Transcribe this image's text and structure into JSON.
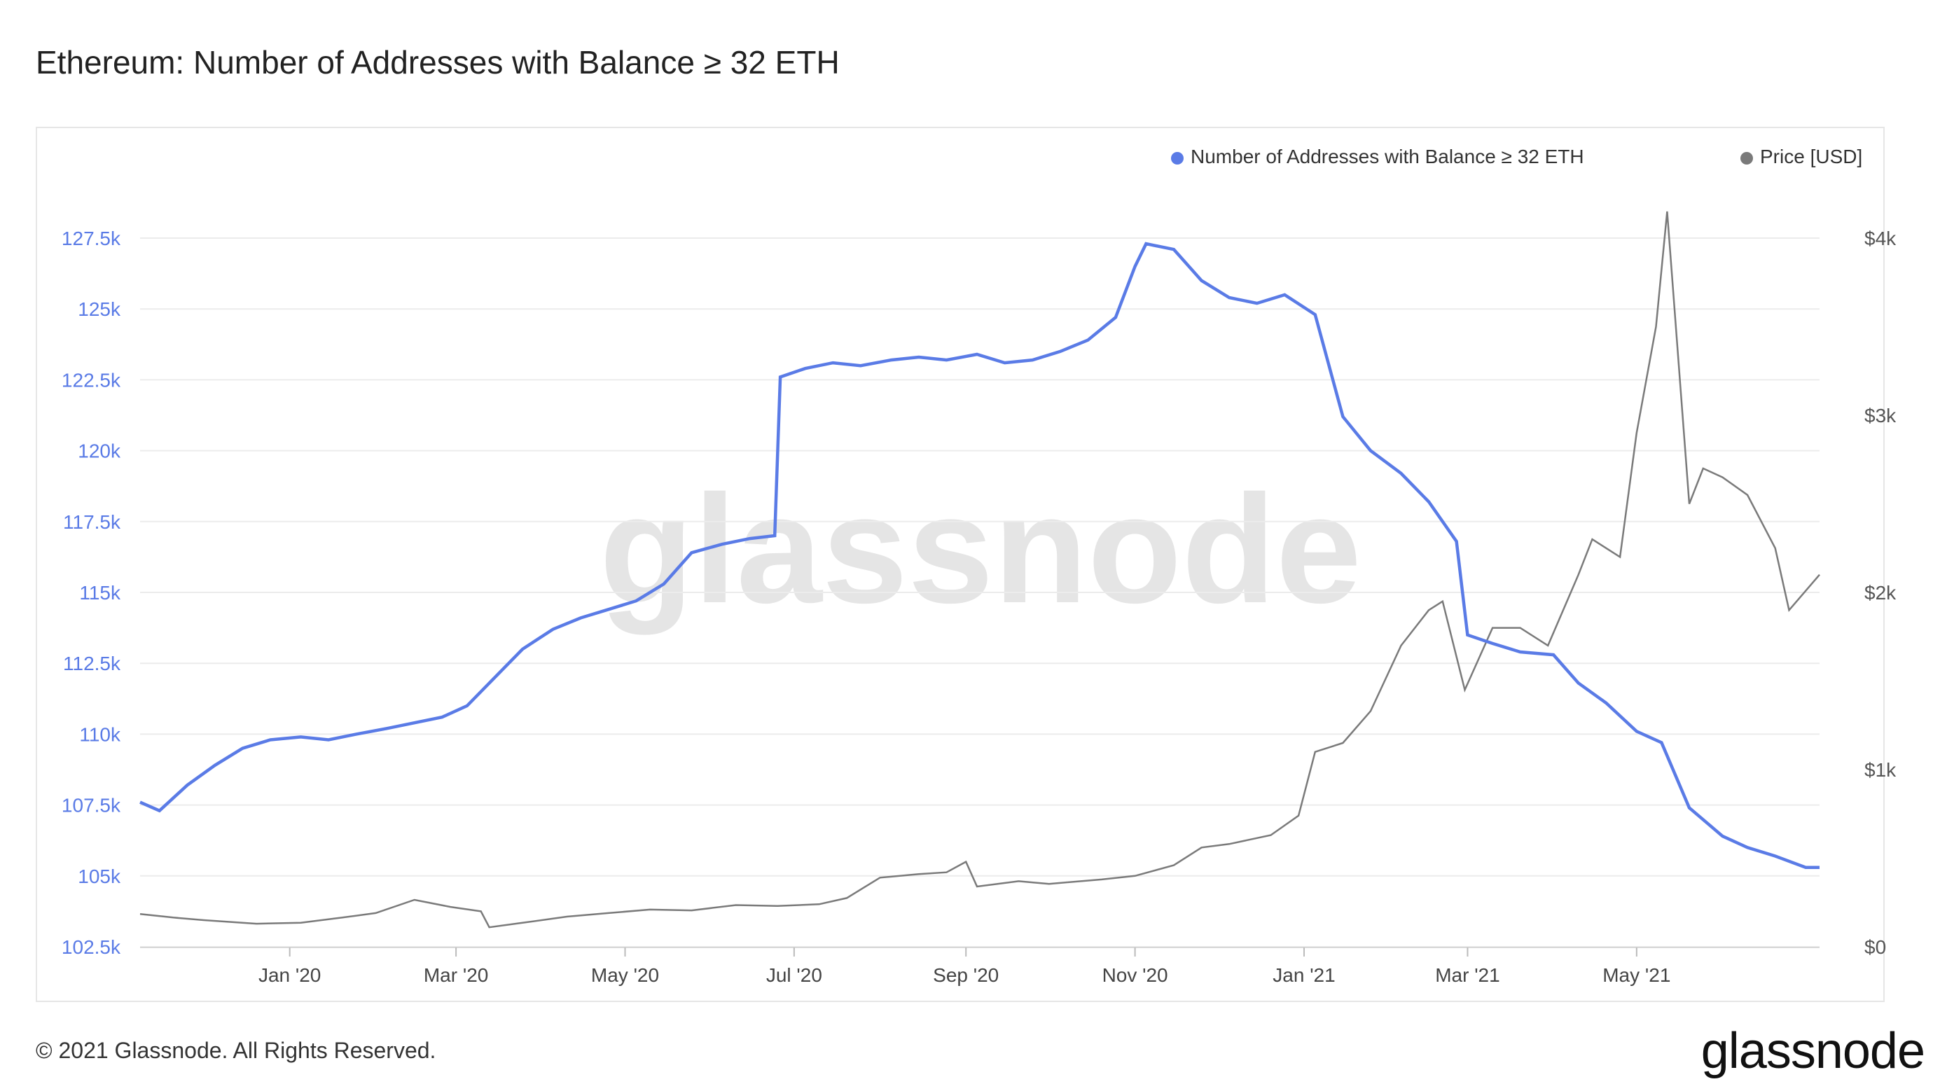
{
  "title": "Ethereum: Number of Addresses with Balance ≥ 32 ETH",
  "footer": "© 2021 Glassnode. All Rights Reserved.",
  "logo": "glassnode",
  "watermark": "glassnode",
  "colors": {
    "addresses": "#5a7be6",
    "price": "#7a7a7a",
    "grid": "#ececec"
  },
  "chart_data": {
    "type": "line",
    "title": "Ethereum: Number of Addresses with Balance ≥ 32 ETH",
    "x_ticks": [
      "Jan '20",
      "Mar '20",
      "May '20",
      "Jul '20",
      "Sep '20",
      "Nov '20",
      "Jan '21",
      "Mar '21",
      "May '21"
    ],
    "x_tick_dates": [
      "2020-01-01",
      "2020-03-01",
      "2020-05-01",
      "2020-07-01",
      "2020-09-01",
      "2020-11-01",
      "2021-01-01",
      "2021-03-01",
      "2021-05-01"
    ],
    "x_range": [
      "2019-11-08",
      "2021-07-06"
    ],
    "y_left": {
      "ticks": [
        "102.5k",
        "105k",
        "107.5k",
        "110k",
        "112.5k",
        "115k",
        "117.5k",
        "120k",
        "122.5k",
        "125k",
        "127.5k"
      ],
      "range": [
        102500,
        127500
      ]
    },
    "y_right": {
      "ticks": [
        "$0",
        "$1k",
        "$2k",
        "$3k",
        "$4k"
      ],
      "range": [
        0,
        4000
      ]
    },
    "legend": {
      "placement": "top-right"
    },
    "grid": true,
    "series": [
      {
        "name": "Number of Addresses with Balance ≥ 32 ETH",
        "axis": "left",
        "x": [
          "2019-11-08",
          "2019-11-15",
          "2019-11-25",
          "2019-12-05",
          "2019-12-15",
          "2019-12-25",
          "2020-01-05",
          "2020-01-15",
          "2020-01-25",
          "2020-02-05",
          "2020-02-15",
          "2020-02-25",
          "2020-03-05",
          "2020-03-15",
          "2020-03-25",
          "2020-04-05",
          "2020-04-15",
          "2020-04-25",
          "2020-05-05",
          "2020-05-15",
          "2020-05-25",
          "2020-06-05",
          "2020-06-15",
          "2020-06-24",
          "2020-06-26",
          "2020-07-05",
          "2020-07-15",
          "2020-07-25",
          "2020-08-05",
          "2020-08-15",
          "2020-08-25",
          "2020-09-05",
          "2020-09-15",
          "2020-09-25",
          "2020-10-05",
          "2020-10-15",
          "2020-10-25",
          "2020-11-01",
          "2020-11-05",
          "2020-11-15",
          "2020-11-25",
          "2020-12-05",
          "2020-12-15",
          "2020-12-25",
          "2021-01-05",
          "2021-01-15",
          "2021-01-25",
          "2021-02-05",
          "2021-02-15",
          "2021-02-25",
          "2021-03-01",
          "2021-03-10",
          "2021-03-20",
          "2021-04-01",
          "2021-04-10",
          "2021-04-20",
          "2021-05-01",
          "2021-05-10",
          "2021-05-20",
          "2021-06-01",
          "2021-06-10",
          "2021-06-20",
          "2021-07-01",
          "2021-07-06"
        ],
        "values": [
          107600,
          107300,
          108200,
          108900,
          109500,
          109800,
          109900,
          109800,
          110000,
          110200,
          110400,
          110600,
          111000,
          112000,
          113000,
          113700,
          114100,
          114400,
          114700,
          115300,
          116400,
          116700,
          116900,
          117000,
          122600,
          122900,
          123100,
          123000,
          123200,
          123300,
          123200,
          123400,
          123100,
          123200,
          123500,
          123900,
          124700,
          126500,
          127300,
          127100,
          126000,
          125400,
          125200,
          125500,
          124800,
          121200,
          120000,
          119200,
          118200,
          116800,
          113500,
          113200,
          112900,
          112800,
          111800,
          111100,
          110100,
          109700,
          107400,
          106400,
          106000,
          105700,
          105300,
          105300
        ]
      },
      {
        "name": "Price [USD]",
        "axis": "right",
        "x": [
          "2019-11-08",
          "2019-11-20",
          "2019-12-01",
          "2019-12-20",
          "2020-01-05",
          "2020-01-20",
          "2020-02-01",
          "2020-02-15",
          "2020-02-28",
          "2020-03-10",
          "2020-03-13",
          "2020-03-25",
          "2020-04-10",
          "2020-04-25",
          "2020-05-10",
          "2020-05-25",
          "2020-06-10",
          "2020-06-25",
          "2020-07-10",
          "2020-07-20",
          "2020-08-01",
          "2020-08-15",
          "2020-08-25",
          "2020-09-01",
          "2020-09-05",
          "2020-09-20",
          "2020-10-01",
          "2020-10-20",
          "2020-11-01",
          "2020-11-15",
          "2020-11-25",
          "2020-12-05",
          "2020-12-20",
          "2020-12-30",
          "2021-01-05",
          "2021-01-15",
          "2021-01-25",
          "2021-02-05",
          "2021-02-15",
          "2021-02-20",
          "2021-02-28",
          "2021-03-10",
          "2021-03-20",
          "2021-03-30",
          "2021-04-10",
          "2021-04-15",
          "2021-04-25",
          "2021-05-01",
          "2021-05-08",
          "2021-05-12",
          "2021-05-20",
          "2021-05-25",
          "2021-06-01",
          "2021-06-10",
          "2021-06-20",
          "2021-06-25",
          "2021-07-06"
        ],
        "values": [
          185,
          165,
          150,
          130,
          135,
          165,
          190,
          265,
          225,
          200,
          110,
          135,
          170,
          190,
          210,
          205,
          235,
          230,
          240,
          275,
          390,
          410,
          420,
          480,
          340,
          370,
          355,
          380,
          400,
          460,
          560,
          580,
          630,
          740,
          1100,
          1150,
          1330,
          1700,
          1900,
          1950,
          1450,
          1800,
          1800,
          1700,
          2100,
          2300,
          2200,
          2900,
          3500,
          4150,
          2500,
          2700,
          2650,
          2550,
          2250,
          1900,
          2100
        ]
      }
    ]
  }
}
